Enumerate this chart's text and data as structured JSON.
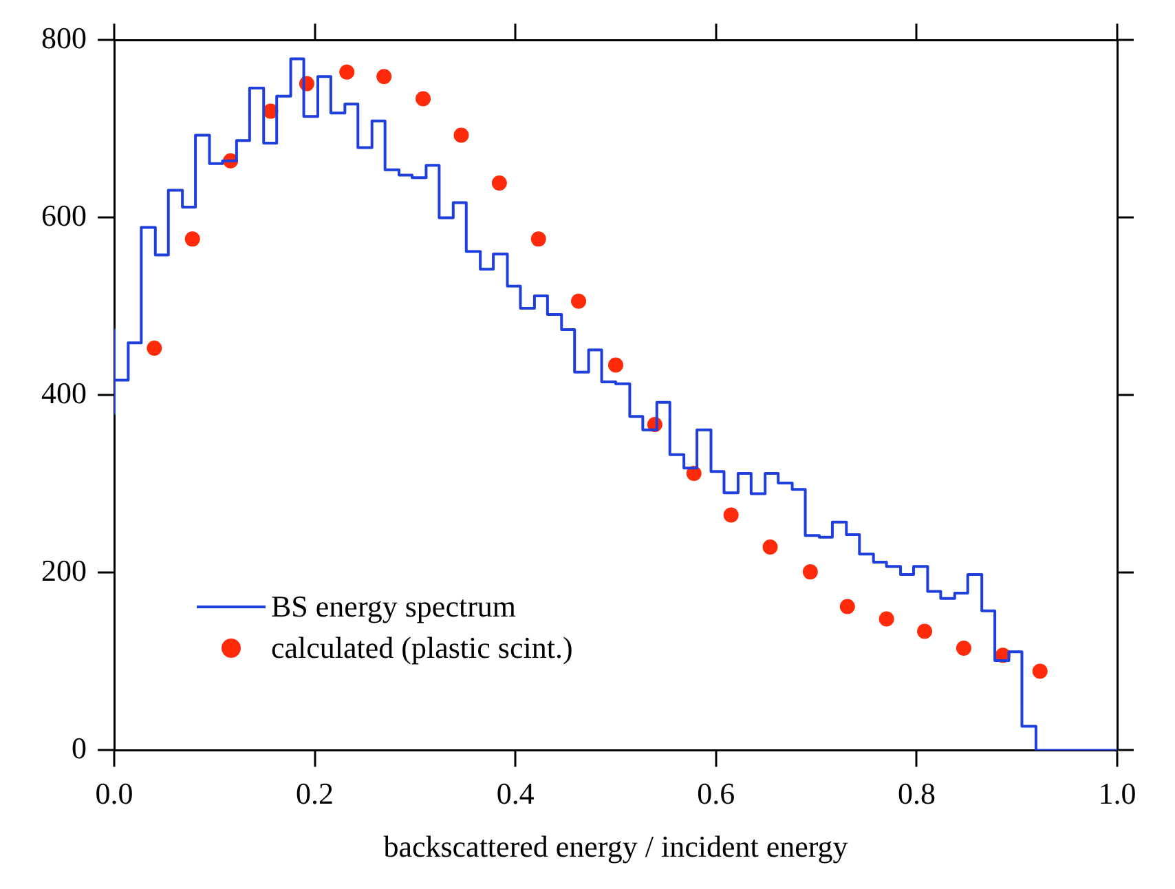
{
  "chart_data": {
    "type": "step",
    "xlabel": "backscattered energy / incident energy",
    "xlim": [
      0,
      1
    ],
    "xticks": [
      "0.0",
      0.2,
      0.4,
      0.6,
      0.8,
      "1.0"
    ],
    "ylim": [
      0,
      800
    ],
    "yticks": [
      0,
      200,
      400,
      600,
      800
    ],
    "grid": false,
    "legend": "bottom left",
    "series": [
      {
        "name": "BS energy spectrum",
        "type": "step",
        "color": "#1f3fdc",
        "marker": "none",
        "x": [
          0,
          0,
          0.014,
          0.027,
          0.041,
          0.054,
          0.068,
          0.081,
          0.095,
          0.108,
          0.122,
          0.135,
          0.149,
          0.162,
          0.176,
          0.189,
          0.203,
          0.216,
          0.23,
          0.243,
          0.257,
          0.27,
          0.284,
          0.297,
          0.311,
          0.324,
          0.338,
          0.351,
          0.365,
          0.378,
          0.392,
          0.405,
          0.419,
          0.432,
          0.446,
          0.459,
          0.473,
          0.486,
          0.5,
          0.514,
          0.527,
          0.541,
          0.554,
          0.568,
          0.581,
          0.595,
          0.608,
          0.622,
          0.635,
          0.649,
          0.662,
          0.676,
          0.689,
          0.703,
          0.716,
          0.73,
          0.743,
          0.757,
          0.77,
          0.784,
          0.797,
          0.811,
          0.824,
          0.838,
          0.851,
          0.865,
          0.878,
          0.892,
          0.905,
          0.919,
          0.932,
          0.946,
          0.959,
          0.973,
          0.986,
          1
        ],
        "values": [
          378,
          474,
          417,
          459,
          589,
          558,
          631,
          612,
          693,
          661,
          664,
          687,
          746,
          684,
          737,
          779,
          714,
          759,
          718,
          728,
          679,
          709,
          654,
          648,
          645,
          659,
          600,
          617,
          562,
          542,
          559,
          523,
          498,
          512,
          491,
          474,
          426,
          451,
          415,
          413,
          376,
          361,
          392,
          333,
          318,
          361,
          314,
          290,
          312,
          289,
          312,
          301,
          294,
          242,
          240,
          257,
          243,
          221,
          212,
          207,
          198,
          207,
          179,
          171,
          177,
          198,
          157,
          101,
          111,
          27,
          0,
          0,
          0,
          0,
          0,
          0
        ]
      },
      {
        "name": "calculated (plastic scint.)",
        "type": "scatter",
        "color": "#ff2a0a",
        "marker": "circle",
        "x": [
          0.04,
          0.078,
          0.116,
          0.156,
          0.192,
          0.232,
          0.269,
          0.308,
          0.346,
          0.384,
          0.423,
          0.463,
          0.5,
          0.539,
          0.578,
          0.615,
          0.654,
          0.694,
          0.731,
          0.77,
          0.808,
          0.847,
          0.886,
          0.923
        ],
        "values": [
          453,
          576,
          664,
          720,
          751,
          764,
          759,
          734,
          693,
          639,
          576,
          506,
          434,
          367,
          312,
          265,
          229,
          201,
          162,
          148,
          134,
          115,
          107,
          89
        ]
      }
    ]
  }
}
